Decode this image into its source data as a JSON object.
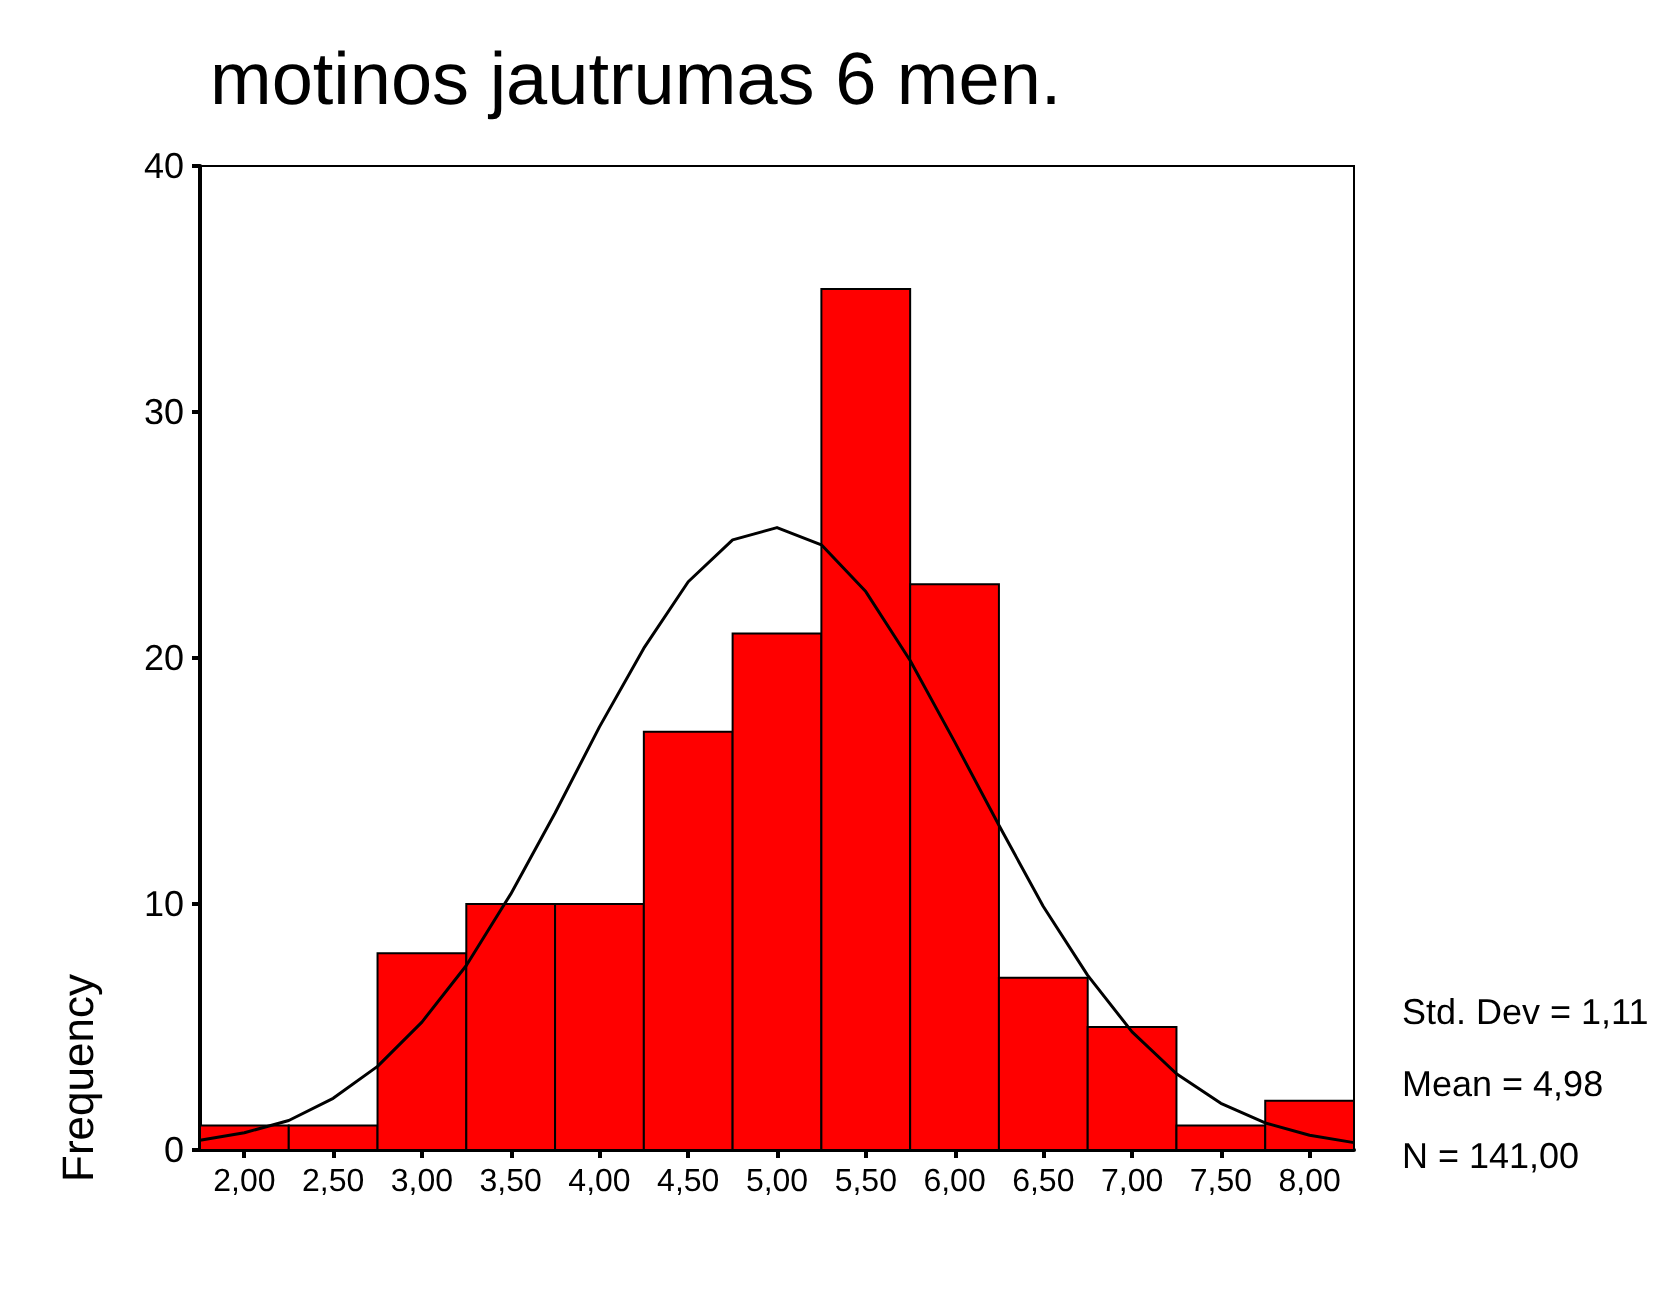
{
  "chart_data": {
    "type": "histogram",
    "title": "motinos jautrumas 6 men.",
    "ylabel": "Frequency",
    "bins": [
      1.75,
      2.25,
      2.75,
      3.25,
      3.75,
      4.25,
      4.75,
      5.25,
      5.75,
      6.25,
      6.75,
      7.25,
      7.75,
      8.25
    ],
    "values": [
      1,
      1,
      8,
      10,
      10,
      17,
      21,
      35,
      23,
      7,
      5,
      1,
      2
    ],
    "color": "#ff0000",
    "series": [
      {
        "type": "line",
        "color": "#000000",
        "x": [
          1.75,
          2.0,
          2.25,
          2.5,
          2.75,
          3.0,
          3.25,
          3.5,
          3.75,
          4.0,
          4.25,
          4.5,
          4.75,
          5.0,
          5.25,
          5.5,
          5.75,
          6.0,
          6.25,
          6.5,
          6.75,
          7.0,
          7.25,
          7.5,
          7.75,
          8.0,
          8.25
        ],
        "values": [
          0.4,
          0.7,
          1.2,
          2.1,
          3.4,
          5.2,
          7.5,
          10.4,
          13.7,
          17.2,
          20.4,
          23.1,
          24.8,
          25.3,
          24.6,
          22.7,
          19.9,
          16.6,
          13.2,
          9.9,
          7.1,
          4.8,
          3.1,
          1.9,
          1.1,
          0.6,
          0.3
        ]
      }
    ],
    "xlim": [
      1.75,
      8.25
    ],
    "xticks": [
      {
        "value": 2,
        "label": "2,00"
      },
      {
        "value": 2.5,
        "label": "2,50"
      },
      {
        "value": 3,
        "label": "3,00"
      },
      {
        "value": 3.5,
        "label": "3,50"
      },
      {
        "value": 4,
        "label": "4,00"
      },
      {
        "value": 4.5,
        "label": "4,50"
      },
      {
        "value": 5,
        "label": "5,00"
      },
      {
        "value": 5.5,
        "label": "5,50"
      },
      {
        "value": 6,
        "label": "6,00"
      },
      {
        "value": 6.5,
        "label": "6,50"
      },
      {
        "value": 7,
        "label": "7,00"
      },
      {
        "value": 7.5,
        "label": "7,50"
      },
      {
        "value": 8,
        "label": "8,00"
      }
    ],
    "ylim": [
      0,
      40
    ],
    "yticks": [
      0,
      10,
      20,
      30,
      40
    ],
    "grid": false,
    "annotations": [
      "Std. Dev = 1,11",
      "Mean = 4,98",
      "N = 141,00"
    ]
  }
}
